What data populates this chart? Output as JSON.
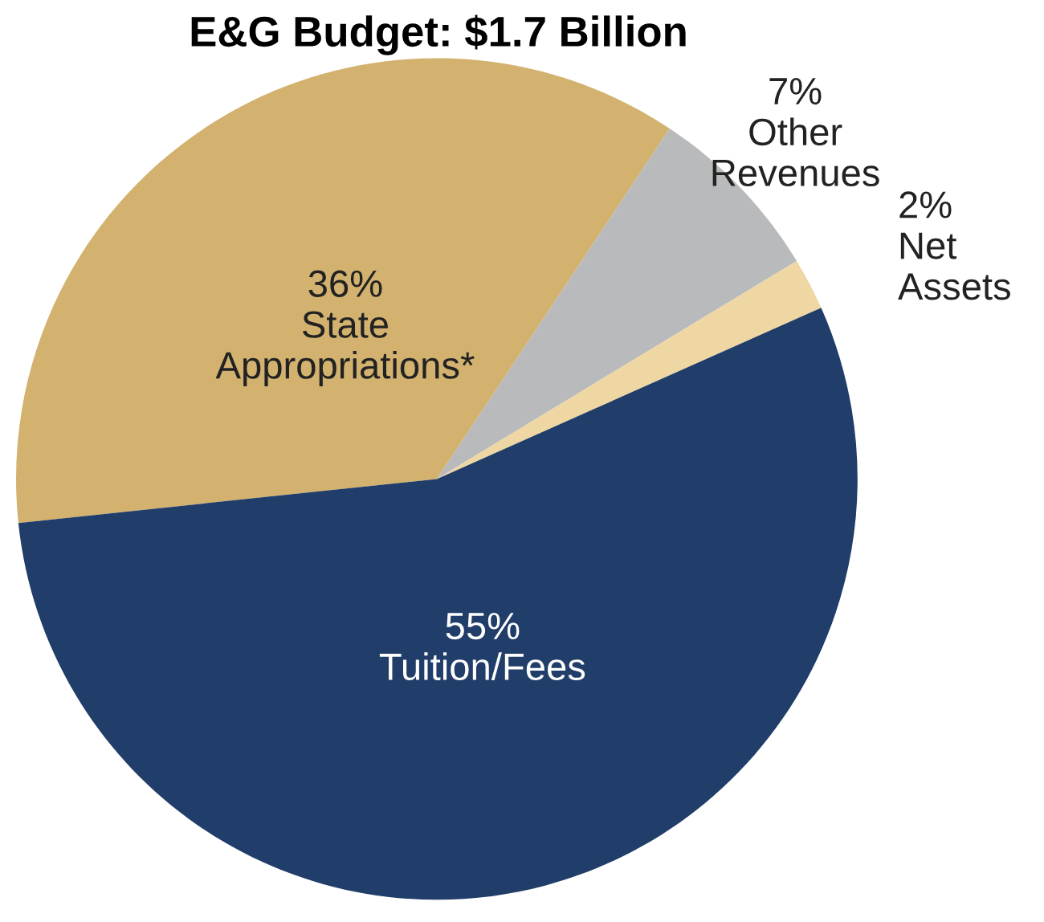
{
  "chart_data": {
    "type": "pie",
    "title": "E&G Budget: $1.7 Billion",
    "categories": [
      "State Appropriations*",
      "Other Revenues",
      "Net Assets",
      "Tuition/Fees"
    ],
    "values": [
      36,
      7,
      2,
      55
    ],
    "value_labels": [
      "36%",
      "7%",
      "2%",
      "55%"
    ],
    "colors": [
      "#d2b26e",
      "#b9babc",
      "#efd7a3",
      "#213d69"
    ],
    "legend": false
  }
}
